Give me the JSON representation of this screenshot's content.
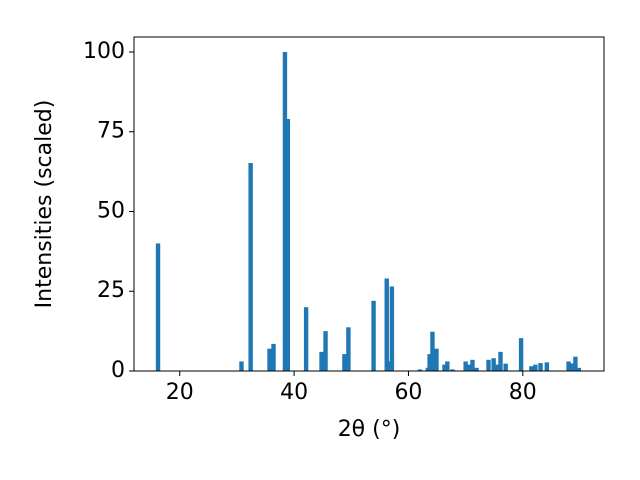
{
  "chart_data": {
    "type": "bar",
    "x_label": "2θ (°)",
    "y_label": "Intensities (scaled)",
    "x": [
      16.2,
      30.8,
      32.4,
      35.7,
      36.4,
      38.4,
      38.9,
      42.1,
      44.8,
      45.5,
      48.8,
      49.5,
      53.9,
      56.2,
      56.5,
      57.1,
      62.0,
      63.4,
      63.7,
      64.2,
      64.9,
      66.3,
      66.8,
      67.7,
      70.0,
      70.5,
      71.2,
      71.9,
      74.0,
      74.9,
      75.4,
      76.1,
      77.0,
      79.7,
      81.5,
      82.2,
      83.1,
      84.2,
      88.0,
      88.5,
      89.2,
      89.8
    ],
    "values": [
      40,
      3,
      65.2,
      7,
      8.5,
      100,
      79,
      20,
      6,
      12.5,
      5.3,
      13.7,
      22,
      29,
      3,
      26.5,
      0.5,
      1,
      5.3,
      12.3,
      7,
      2,
      3,
      0.5,
      3,
      2,
      3.5,
      1,
      3.5,
      4,
      2,
      6,
      2.3,
      10.3,
      1.5,
      2,
      2.5,
      2.7,
      3,
      2.4,
      4.5,
      1
    ],
    "color": "#1f77b4",
    "xlim": [
      12,
      94.2
    ],
    "ylim": [
      0,
      104.7
    ],
    "xticks": [
      20,
      40,
      60,
      80
    ],
    "yticks": [
      0,
      25,
      50,
      75,
      100
    ]
  }
}
